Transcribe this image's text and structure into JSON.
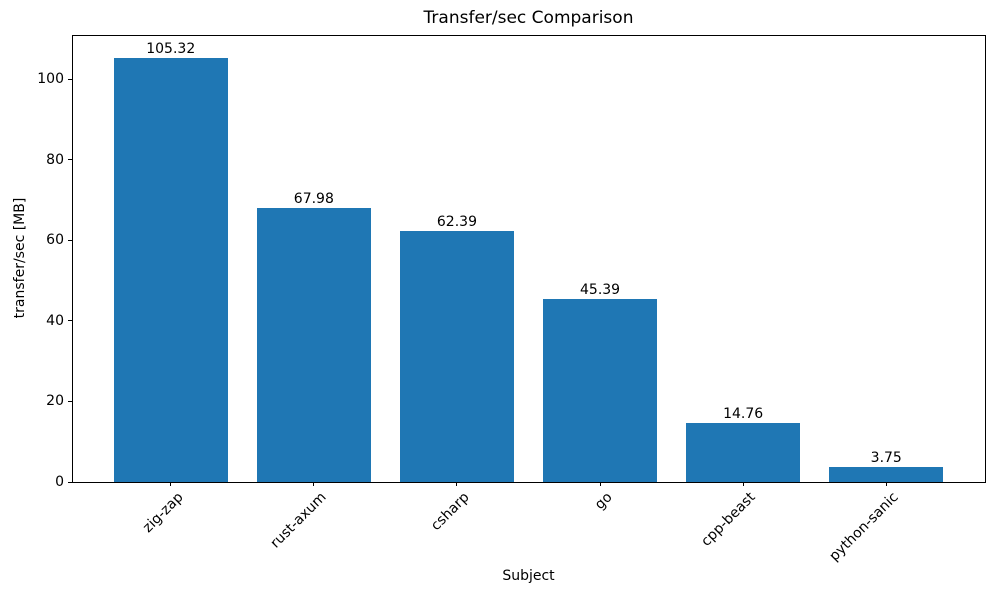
{
  "chart_data": {
    "type": "bar",
    "title": "Transfer/sec Comparison",
    "xlabel": "Subject",
    "ylabel": "transfer/sec [MB]",
    "categories": [
      "zig-zap",
      "rust-axum",
      "csharp",
      "go",
      "cpp-beast",
      "python-sanic"
    ],
    "values": [
      105.32,
      67.98,
      62.39,
      45.39,
      14.76,
      3.75
    ],
    "value_labels": [
      "105.32",
      "67.98",
      "62.39",
      "45.39",
      "14.76",
      "3.75"
    ],
    "y_ticks": [
      0,
      20,
      40,
      60,
      80,
      100
    ],
    "ylim": [
      0,
      111
    ],
    "x_tick_rotation_deg": 45,
    "grid": false,
    "legend": null,
    "bar_color": "#1f77b4",
    "text_color": "#000000",
    "background_color": "#ffffff"
  }
}
